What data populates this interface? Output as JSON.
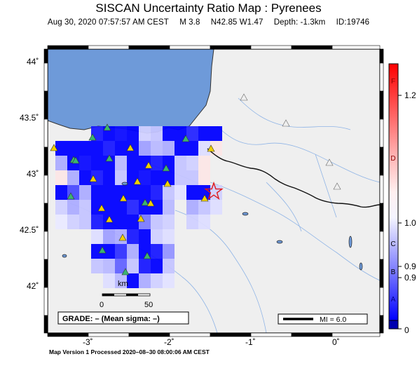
{
  "header": {
    "title": "SISCAN Uncertainty Ratio Map : Pyrenees",
    "date": "Aug 30, 2020 07:57:57 AM CEST",
    "magnitude": "M 3.8",
    "location": "N42.85 W1.47",
    "depth": "Depth: -1.3km",
    "event_id": "ID:19746"
  },
  "axes": {
    "lat_labels": [
      "44˚",
      "43.5˚",
      "43˚",
      "42.5˚",
      "42˚"
    ],
    "lon_labels": [
      "-3˚",
      "-2˚",
      "-1˚",
      "0˚"
    ]
  },
  "scale_bar": {
    "unit": "km",
    "start": "0",
    "end": "50"
  },
  "grade_box": "GRADE: – (Mean sigma: –)",
  "mi_box": "MI = 6.0",
  "colorbar": {
    "letters": [
      "F",
      "D",
      "C",
      "B",
      "A"
    ],
    "values": [
      "1.2",
      "1.0",
      "0.9",
      "0.9",
      "0"
    ]
  },
  "footer": "Map Version 1 Processed 2020–08–30 08:00:06 AM CEST",
  "colors": {
    "sea": "#6e9ad9",
    "land": "#efefef",
    "grid_blue": "#0000e6",
    "epicenter": "#e01818",
    "station_active": "#f0d000",
    "station_green": "#3cb371"
  }
}
